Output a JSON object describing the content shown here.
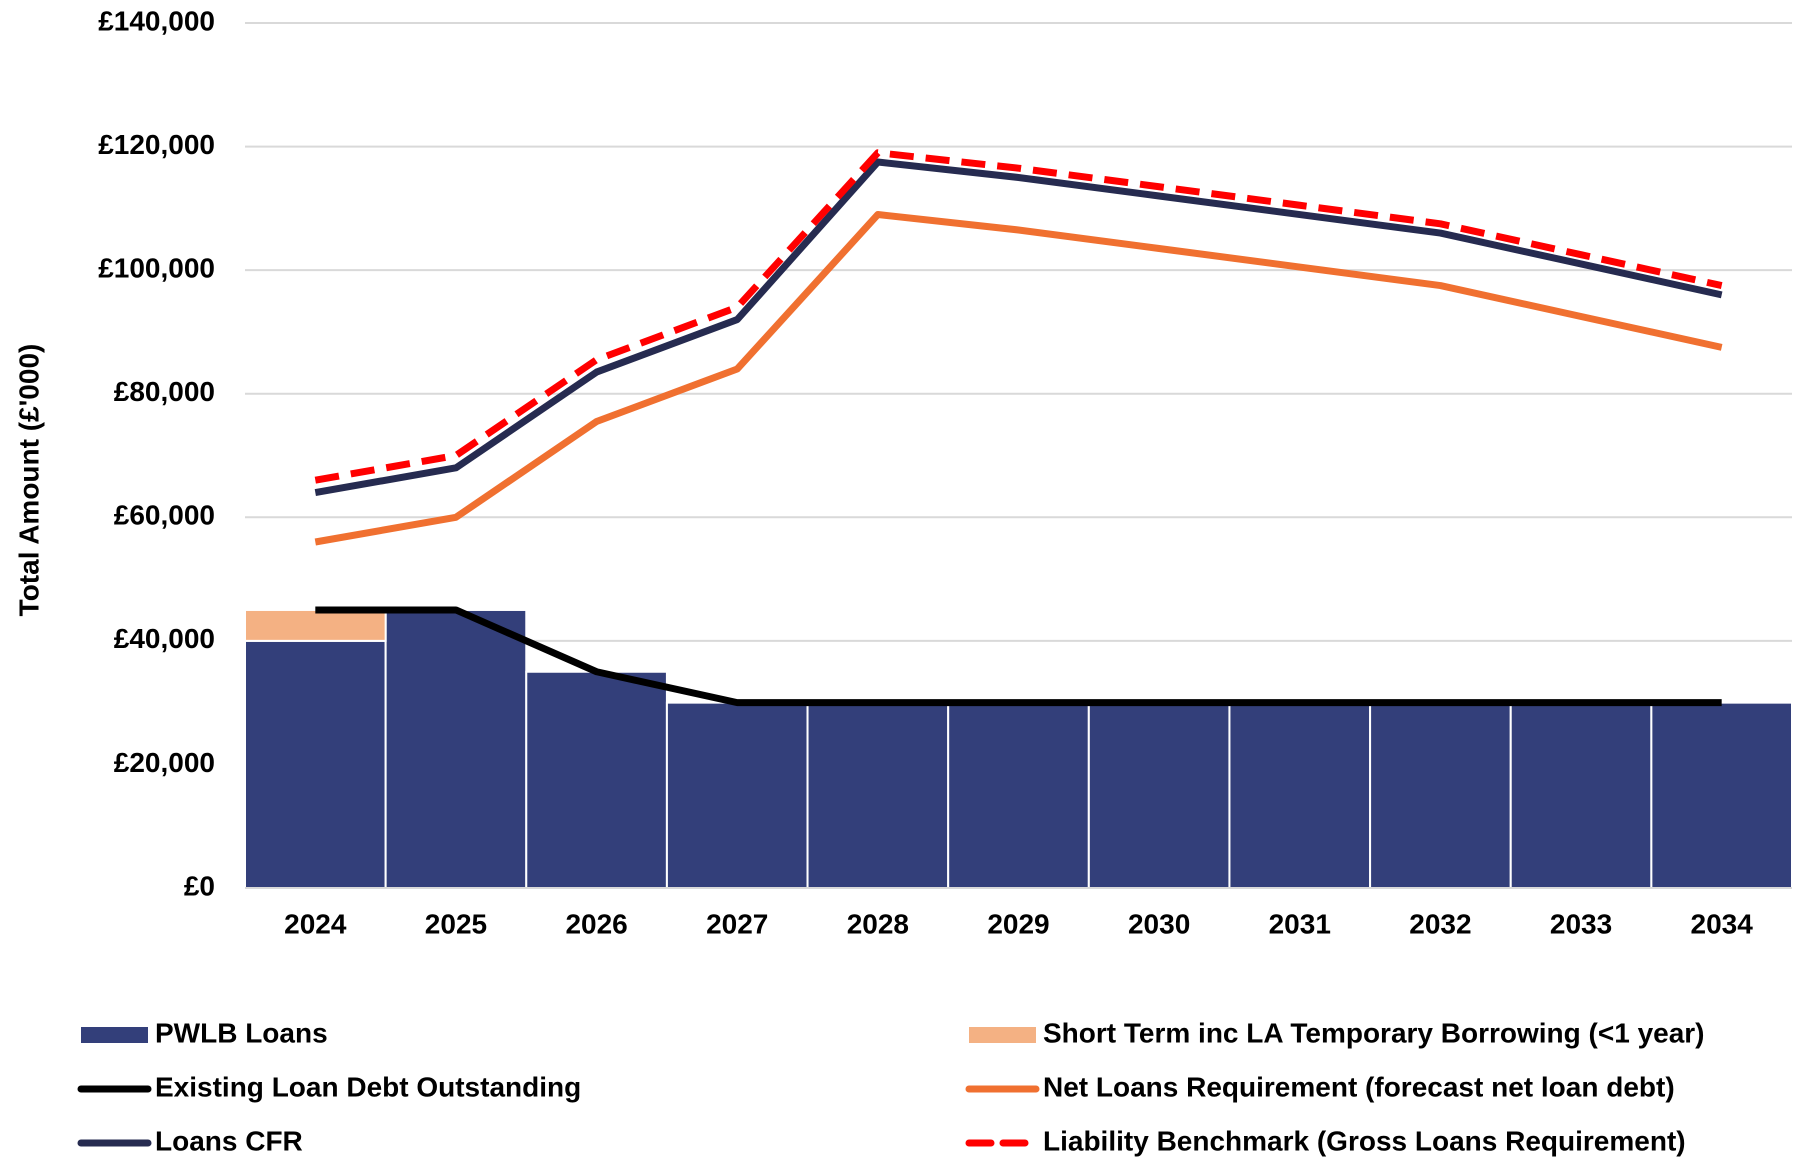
{
  "chart_data": {
    "type": "bar",
    "y_label": "Total Amount (£'000)",
    "categories": [
      "2024",
      "2025",
      "2026",
      "2027",
      "2028",
      "2029",
      "2030",
      "2031",
      "2032",
      "2033",
      "2034"
    ],
    "series": [
      {
        "name": "PWLB Loans",
        "type": "bar",
        "color": "#333f7a",
        "values": [
          40000,
          45000,
          35000,
          30000,
          30000,
          30000,
          30000,
          30000,
          30000,
          30000,
          30000
        ]
      },
      {
        "name": "Short Term inc LA Temporary Borrowing (<1 year)",
        "type": "bar",
        "color": "#f4b183",
        "values": [
          5000,
          0,
          0,
          0,
          0,
          0,
          0,
          0,
          0,
          0,
          0
        ]
      },
      {
        "name": "Existing Loan Debt Outstanding",
        "type": "line",
        "color": "#000000",
        "values": [
          45000,
          45000,
          35000,
          30000,
          30000,
          30000,
          30000,
          30000,
          30000,
          30000,
          30000
        ]
      },
      {
        "name": "Net Loans Requirement (forecast net loan debt)",
        "type": "line",
        "color": "#f07030",
        "values": [
          56000,
          60000,
          75500,
          84000,
          109000,
          106500,
          103500,
          100500,
          97500,
          92500,
          87500
        ]
      },
      {
        "name": "Loans CFR",
        "type": "line",
        "color": "#262b50",
        "values": [
          64000,
          68000,
          83500,
          92000,
          117500,
          115000,
          112000,
          109000,
          106000,
          101000,
          96000
        ]
      },
      {
        "name": "Liability Benchmark (Gross Loans Requirement)",
        "type": "line",
        "dashed": true,
        "color": "#ff0000",
        "values": [
          66000,
          70000,
          85500,
          94000,
          119000,
          116500,
          113500,
          110500,
          107500,
          102500,
          97500
        ]
      }
    ],
    "ylim": [
      0,
      140000
    ],
    "yticks": [
      {
        "value": 0,
        "label": "£0"
      },
      {
        "value": 20000,
        "label": "£20,000"
      },
      {
        "value": 40000,
        "label": "£40,000"
      },
      {
        "value": 60000,
        "label": "£60,000"
      },
      {
        "value": 80000,
        "label": "£80,000"
      },
      {
        "value": 100000,
        "label": "£100,000"
      },
      {
        "value": 120000,
        "label": "£120,000"
      },
      {
        "value": 140000,
        "label": "£140,000"
      }
    ],
    "grid": true
  }
}
